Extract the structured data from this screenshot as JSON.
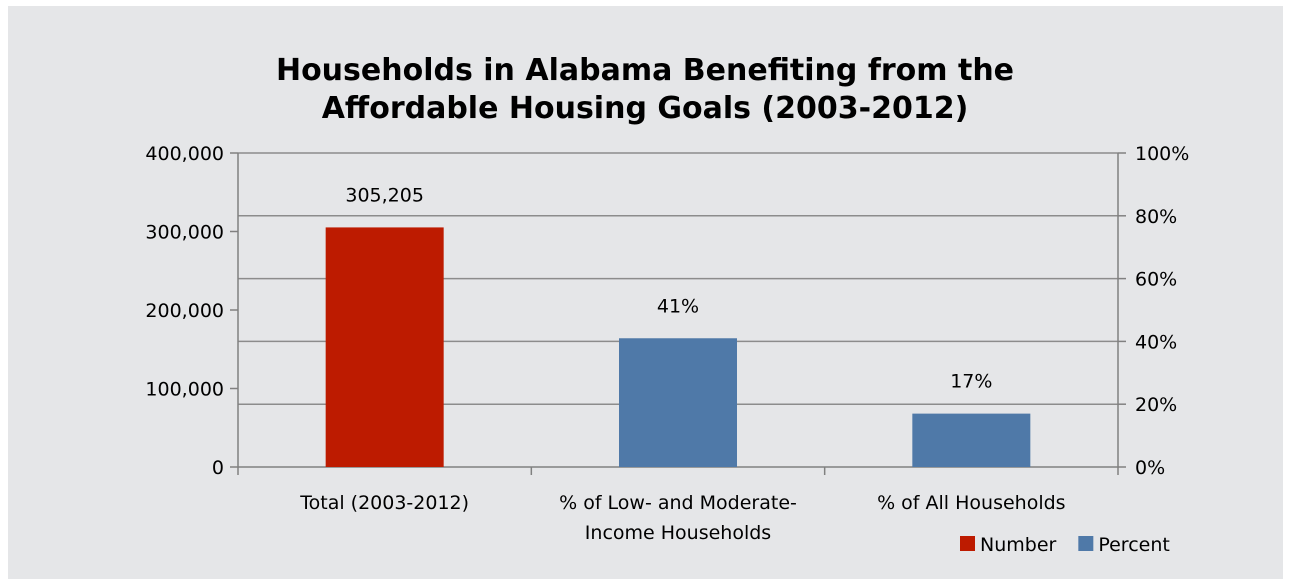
{
  "chart_data": {
    "type": "bar",
    "title_lines": [
      "Households in Alabama Benefiting from the",
      "Affordable Housing Goals   (2003-2012)"
    ],
    "categories": [
      [
        "Total (2003-2012)"
      ],
      [
        "% of Low- and Moderate-",
        "Income Households"
      ],
      [
        "% of All Households"
      ]
    ],
    "series": [
      {
        "name": "Number",
        "axis": "left",
        "color": "#bd1b00",
        "values": [
          305205,
          null,
          null
        ],
        "labels": [
          "305,205",
          null,
          null
        ]
      },
      {
        "name": "Percent",
        "axis": "right",
        "color": "#4f79a8",
        "values": [
          null,
          41,
          17
        ],
        "labels": [
          null,
          "41%",
          "17%"
        ]
      }
    ],
    "y_left": {
      "min": 0,
      "max": 400000,
      "ticks": [
        0,
        100000,
        200000,
        300000,
        400000
      ],
      "tick_labels": [
        "0",
        "100,000",
        "200,000",
        "300,000",
        "400,000"
      ]
    },
    "y_right": {
      "min": 0,
      "max": 100,
      "ticks": [
        0,
        20,
        40,
        60,
        80,
        100
      ],
      "tick_labels": [
        "0%",
        "20%",
        "40%",
        "60%",
        "80%",
        "100%"
      ]
    },
    "grid": "horizontal (right axis)",
    "legend_position": "bottom-right"
  }
}
